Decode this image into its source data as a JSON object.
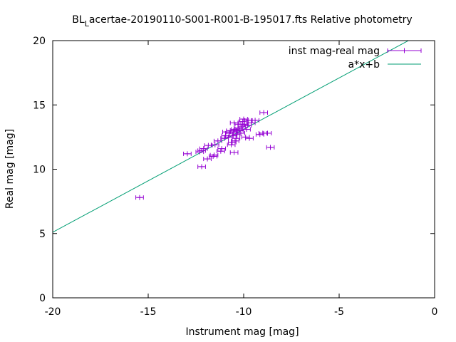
{
  "chart_data": {
    "type": "scatter",
    "title_main": "BL",
    "title_sub": "L",
    "title_rest": "acertae-20190110-S001-R001-B-195017.fts Relative photometry",
    "xlabel": "Instrument mag [mag]",
    "ylabel": "Real mag [mag]",
    "xlim": [
      -20,
      0
    ],
    "ylim": [
      0,
      20
    ],
    "xticks": [
      -20,
      -15,
      -10,
      -5,
      0
    ],
    "yticks": [
      0,
      5,
      10,
      15,
      20
    ],
    "xtick_labels": [
      "-20",
      "-15",
      "-10",
      "-5",
      "0"
    ],
    "ytick_labels": [
      "0",
      "5",
      "10",
      "15",
      "20"
    ],
    "grid": false,
    "legend_position": "top-right",
    "series": [
      {
        "name": "inst mag-real mag",
        "kind": "points_with_xerrorbars",
        "color": "#9400d3",
        "xerr": 0.2,
        "points": [
          [
            -15.45,
            7.8
          ],
          [
            -12.95,
            11.2
          ],
          [
            -12.3,
            11.35
          ],
          [
            -12.2,
            11.45
          ],
          [
            -12.1,
            11.6
          ],
          [
            -12.2,
            10.2
          ],
          [
            -11.9,
            10.8
          ],
          [
            -11.85,
            11.85
          ],
          [
            -11.6,
            11.0
          ],
          [
            -11.55,
            11.1
          ],
          [
            -11.5,
            11.9
          ],
          [
            -11.35,
            12.2
          ],
          [
            -11.2,
            11.4
          ],
          [
            -11.15,
            11.6
          ],
          [
            -11.0,
            12.4
          ],
          [
            -10.95,
            12.6
          ],
          [
            -10.9,
            12.9
          ],
          [
            -10.8,
            12.5
          ],
          [
            -10.75,
            12.8
          ],
          [
            -10.7,
            13.0
          ],
          [
            -10.65,
            11.9
          ],
          [
            -10.6,
            12.1
          ],
          [
            -10.55,
            12.6
          ],
          [
            -10.5,
            12.9
          ],
          [
            -10.45,
            13.1
          ],
          [
            -10.5,
            13.6
          ],
          [
            -10.4,
            12.7
          ],
          [
            -10.35,
            13.0
          ],
          [
            -10.5,
            11.3
          ],
          [
            -10.45,
            12.2
          ],
          [
            -10.4,
            12.4
          ],
          [
            -10.3,
            13.2
          ],
          [
            -10.25,
            13.5
          ],
          [
            -10.2,
            13.0
          ],
          [
            -10.15,
            12.8
          ],
          [
            -10.1,
            13.3
          ],
          [
            -10.05,
            13.7
          ],
          [
            -10.0,
            13.9
          ],
          [
            -9.95,
            13.5
          ],
          [
            -9.9,
            12.5
          ],
          [
            -9.85,
            13.1
          ],
          [
            -9.8,
            13.4
          ],
          [
            -9.75,
            13.8
          ],
          [
            -9.7,
            12.4
          ],
          [
            -9.6,
            13.6
          ],
          [
            -9.4,
            13.8
          ],
          [
            -9.15,
            12.7
          ],
          [
            -9.0,
            12.8
          ],
          [
            -8.95,
            14.4
          ],
          [
            -8.75,
            12.8
          ],
          [
            -8.6,
            11.7
          ]
        ]
      },
      {
        "name": "a*x+b",
        "kind": "line",
        "color": "#009e73",
        "slope": 0.8,
        "intercept": 21.1
      }
    ]
  }
}
